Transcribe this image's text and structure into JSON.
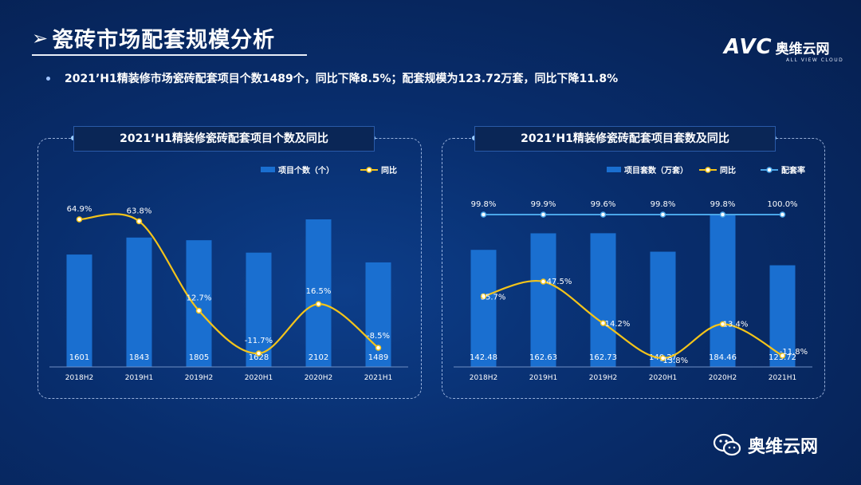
{
  "header": {
    "arrow": "➢",
    "title": "瓷砖市场配套规模分析",
    "logo_text": "AVC",
    "logo_cn": "奥维云网",
    "logo_sub": "ALL VIEW CLOUD"
  },
  "summary": "2021’H1精装修市场瓷砖配套项目个数1489个，同比下降8.5%；配套规模为123.72万套，同比下降11.8%",
  "footer": {
    "brand": "奥维云网"
  },
  "colors": {
    "bar": "#1a6fd0",
    "line": "#f4c41a",
    "rate_line": "#4aa6e8"
  },
  "chart_data": [
    {
      "type": "bar",
      "title": "2021’H1精装修瓷砖配套项目个数及同比",
      "legend": [
        "项目个数（个）",
        "同比"
      ],
      "categories": [
        "2018H2",
        "2019H1",
        "2019H2",
        "2020H1",
        "2020H2",
        "2021H1"
      ],
      "series": [
        {
          "name": "项目个数（个）",
          "type": "bar",
          "values": [
            1601,
            1843,
            1805,
            1628,
            2102,
            1489
          ],
          "labels": [
            "1601",
            "1843",
            "1805",
            "1628",
            "2102",
            "1489"
          ]
        },
        {
          "name": "同比",
          "type": "line",
          "values": [
            64.9,
            63.8,
            12.7,
            -11.7,
            16.5,
            -8.5
          ],
          "labels": [
            "64.9%",
            "63.8%",
            "12.7%",
            "-11.7%",
            "16.5%",
            "-8.5%"
          ]
        }
      ]
    },
    {
      "type": "bar",
      "title": "2021’H1精装修瓷砖配套项目套数及同比",
      "legend": [
        "项目套数（万套）",
        "同比",
        "配套率"
      ],
      "categories": [
        "2018H2",
        "2019H1",
        "2019H2",
        "2020H1",
        "2020H2",
        "2021H1"
      ],
      "series": [
        {
          "name": "项目套数（万套）",
          "type": "bar",
          "values": [
            142.48,
            162.63,
            162.73,
            140.27,
            184.46,
            123.72
          ],
          "labels": [
            "142.48",
            "162.63",
            "162.73",
            "140.27",
            "184.46",
            "123.72"
          ]
        },
        {
          "name": "同比",
          "type": "line",
          "values": [
            35.7,
            47.5,
            14.2,
            -13.8,
            13.4,
            -11.8
          ],
          "labels": [
            "35.7%",
            "47.5%",
            "14.2%",
            "-13.8%",
            "13.4%",
            "-11.8%"
          ]
        },
        {
          "name": "配套率",
          "type": "line",
          "values": [
            99.8,
            99.9,
            99.6,
            99.8,
            99.8,
            100.0
          ],
          "labels": [
            "99.8%",
            "99.9%",
            "99.6%",
            "99.8%",
            "99.8%",
            "100.0%"
          ]
        }
      ]
    }
  ]
}
